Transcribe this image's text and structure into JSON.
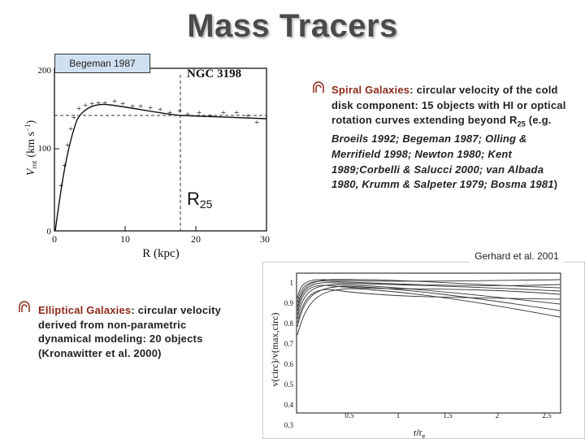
{
  "title": "Mass Tracers",
  "left_plot": {
    "source": "Begeman 1987",
    "galaxy": "NGC 3198",
    "x_label": "R (kpc)",
    "y_label": "V",
    "y_label_sub": "rot",
    "y_label_unit": "(km s",
    "y_label_exp": "−1",
    "y_label_close": ")",
    "xticks": [
      "0",
      "10",
      "20",
      "30"
    ],
    "yticks": [
      "0",
      "100",
      "200"
    ],
    "marker": "R",
    "marker_sub": "25"
  },
  "spiral": {
    "heading": "Spiral Galaxies",
    "text": ": circular velocity of the cold disk component: 15 objects with HI or optical rotation  curves extending beyond R",
    "sub": "25",
    "open": " (e.g. ",
    "refs": "Broeils 1992; Begeman 1987; Olling & Merrifield 1998; Newton 1980; Kent 1989;Corbelli & Salucci 2000; van Albada 1980, Krumm & Salpeter 1979; Bosma 1981",
    "close": ")"
  },
  "right_plot": {
    "source": "Gerhard et al. 2001",
    "y_label": "v(circ)/v(max,circ)",
    "x_label": "r/r",
    "x_label_sub": "e",
    "xticks": [
      "0.5",
      "1",
      "1.5",
      "2",
      "2.5"
    ],
    "yticks": [
      "1",
      "0.9",
      "0.8",
      "0.7",
      "0.6",
      "0.5",
      "0.4",
      "0.3"
    ]
  },
  "elliptical": {
    "heading": "Elliptical Galaxies",
    "text": ": circular velocity derived from non-parametric dynamical modeling: 20 objects (Kronawitter et al. 2000)"
  }
}
